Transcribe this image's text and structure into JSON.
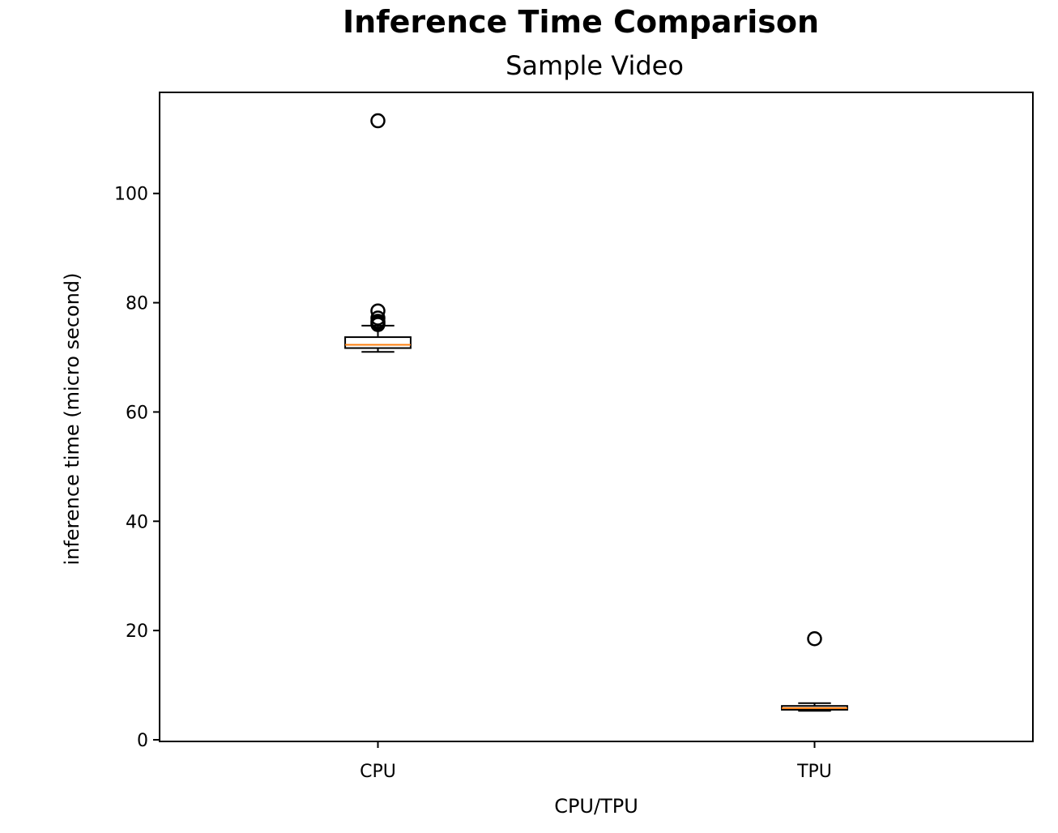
{
  "chart_data": {
    "type": "boxplot",
    "title": "Inference Time Comparison",
    "subtitle": "Sample Video",
    "xlabel": "CPU/TPU",
    "ylabel": "inference time (micro second)",
    "ylim": [
      -0.3,
      118.5
    ],
    "yticks": [
      0,
      20,
      40,
      60,
      80,
      100
    ],
    "categories": [
      "CPU",
      "TPU"
    ],
    "boxes": [
      {
        "category": "CPU",
        "whisker_low": 71.0,
        "q1": 71.7,
        "median": 72.3,
        "q3": 73.7,
        "whisker_high": 75.8,
        "outliers": [
          113.3,
          78.5,
          77.2,
          76.6,
          76.3,
          76.0
        ]
      },
      {
        "category": "TPU",
        "whisker_low": 5.3,
        "q1": 5.5,
        "median": 5.8,
        "q3": 6.2,
        "whisker_high": 6.7,
        "outliers": [
          18.5
        ]
      }
    ],
    "grid": false,
    "colors": {
      "median": "#ff7f0e",
      "box": "#000000",
      "outlier": "#000000"
    }
  }
}
